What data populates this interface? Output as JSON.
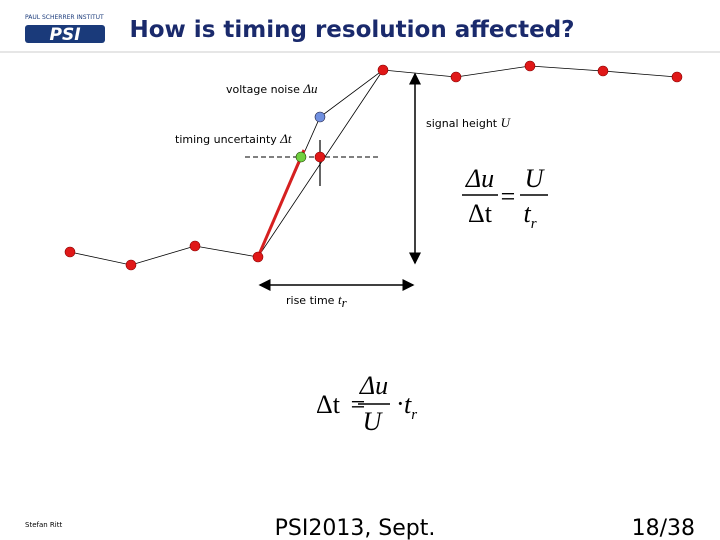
{
  "header": {
    "logo_small": "PAUL SCHERRER INSTITUT",
    "logo": "PSI",
    "title": "How is timing resolution affected?"
  },
  "labels": {
    "voltage_noise": {
      "text": "voltage noise",
      "symbol": "Δu"
    },
    "signal_height": {
      "text": "signal height",
      "symbol": "U"
    },
    "timing_uncertainty": {
      "text": "timing uncertainty",
      "symbol": "Δt"
    },
    "rise_time": {
      "text": "rise time",
      "symbol": "t",
      "subscript": "r"
    }
  },
  "formula1": {
    "num_left": "Δu",
    "den_left": "Δt",
    "equals": "=",
    "num_right": "U",
    "den_right": "t",
    "den_right_sub": "r"
  },
  "formula2": {
    "left": "Δt",
    "equals": "=",
    "num": "Δu",
    "den": "U",
    "dot": "·",
    "factor": "t",
    "factor_sub": "r"
  },
  "footer": {
    "author": "Stefan Ritt",
    "event": "PSI2013, Sept.",
    "page": "18/38"
  }
}
